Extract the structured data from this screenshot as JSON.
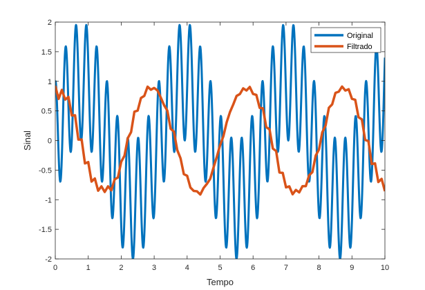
{
  "chart_data": {
    "type": "line",
    "title": "",
    "xlabel": "Tempo",
    "ylabel": "Sinal",
    "xlim": [
      0,
      10
    ],
    "ylim": [
      -2,
      2
    ],
    "x_ticks": [
      0,
      1,
      2,
      3,
      4,
      5,
      6,
      7,
      8,
      9,
      10
    ],
    "y_ticks": [
      -2,
      -1.5,
      -1,
      -0.5,
      0,
      0.5,
      1,
      1.5,
      2
    ],
    "x_tick_labels": [
      "0",
      "1",
      "2",
      "3",
      "4",
      "5",
      "6",
      "7",
      "8",
      "9",
      "10"
    ],
    "y_tick_labels": [
      "-2",
      "-1.5",
      "-1",
      "-0.5",
      "0",
      "0.5",
      "1",
      "1.5",
      "2"
    ],
    "grid": false,
    "legend_position": "top-right",
    "series": [
      {
        "name": "Original",
        "color": "#0072BD",
        "formula": "sin(2*t) + cos(20*t)",
        "x_start": 0,
        "x_end": 10,
        "samples": 1000
      },
      {
        "name": "Filtrado",
        "color": "#D95319",
        "formula": "moving average (window 31) of sin(2*t) + cos(20*t), sampled at step 0.1",
        "x_start": 0,
        "x_end": 10,
        "step": 0.1,
        "x": [
          0,
          0.1,
          0.2,
          0.3,
          0.4,
          0.5,
          0.6,
          0.7,
          0.8,
          0.9,
          1,
          1.1,
          1.2,
          1.3,
          1.4,
          1.5,
          1.6,
          1.7,
          1.8,
          1.9,
          2,
          2.1,
          2.2,
          2.3,
          2.4,
          2.5,
          2.6,
          2.7,
          2.8,
          2.9,
          3,
          3.1,
          3.2,
          3.3,
          3.4,
          3.5,
          3.6,
          3.7,
          3.8,
          3.9,
          4,
          4.1,
          4.2,
          4.3,
          4.4,
          4.5,
          4.6,
          4.7,
          4.8,
          4.9,
          5,
          5.1,
          5.2,
          5.3,
          5.4,
          5.5,
          5.6,
          5.7,
          5.8,
          5.9,
          6,
          6.1,
          6.2,
          6.3,
          6.4,
          6.5,
          6.6,
          6.7,
          6.8,
          6.9,
          7,
          7.1,
          7.2,
          7.3,
          7.4,
          7.5,
          7.6,
          7.7,
          7.8,
          7.9,
          8,
          8.1,
          8.2,
          8.3,
          8.4,
          8.5,
          8.6,
          8.7,
          8.8,
          8.9,
          9,
          9.1,
          9.2,
          9.3,
          9.4,
          9.5,
          9.6,
          9.7,
          9.8,
          9.9,
          10
        ],
        "values": [
          0.923,
          0.703,
          0.855,
          0.691,
          0.736,
          0.424,
          0.426,
          0.016,
          0.016,
          -0.387,
          -0.364,
          -0.693,
          -0.641,
          -0.848,
          -0.774,
          -0.869,
          -0.774,
          -0.842,
          -0.658,
          -0.624,
          -0.359,
          -0.256,
          0.04,
          0.143,
          0.486,
          0.506,
          0.719,
          0.753,
          0.909,
          0.858,
          0.888,
          0.845,
          0.726,
          0.597,
          0.504,
          0.197,
          0.149,
          -0.161,
          -0.3,
          -0.568,
          -0.595,
          -0.795,
          -0.851,
          -0.858,
          -0.912,
          -0.801,
          -0.732,
          -0.647,
          -0.456,
          -0.275,
          -0.079,
          0.072,
          0.309,
          0.481,
          0.61,
          0.753,
          0.785,
          0.881,
          0.845,
          0.905,
          0.786,
          0.77,
          0.551,
          0.544,
          0.226,
          0.187,
          -0.136,
          -0.178,
          -0.541,
          -0.546,
          -0.791,
          -0.775,
          -0.908,
          -0.835,
          -0.876,
          -0.771,
          -0.771,
          -0.589,
          -0.534,
          -0.255,
          -0.151,
          0.14,
          0.252,
          0.553,
          0.611,
          0.805,
          0.825,
          0.912,
          0.844,
          0.866,
          0.704,
          0.687,
          0.393,
          0.357,
          0.01,
          -0.011,
          -0.397,
          -0.386,
          -0.701,
          -0.648,
          -0.856
        ]
      }
    ]
  }
}
